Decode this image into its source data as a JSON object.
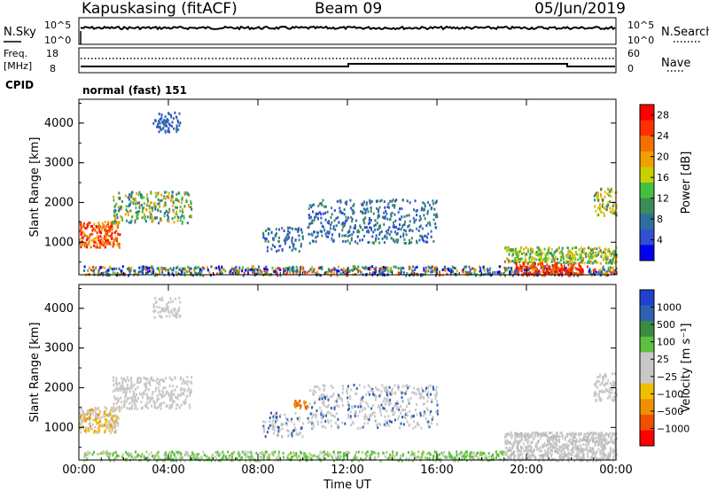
{
  "header": {
    "station": "Kapuskasing (fitACF)",
    "beam": "Beam 09",
    "date": "05/Jun/2019"
  },
  "summary_panels": {
    "nsky_label": "N.Sky",
    "nsky_top": "10^5",
    "nsky_bottom": "10^0",
    "nsearch_label": "N.Search",
    "freq_label_line1": "Freq.",
    "freq_label_line2": "[MHz]",
    "freq_top": "18",
    "freq_bottom": "8",
    "nave_top": "60",
    "nave_bottom": "0",
    "nave_label": "Nave",
    "cpid_label": "CPID",
    "cpid_text": "normal (fast) 151"
  },
  "colors": {
    "power_scale": [
      "#0000f0",
      "#3050d0",
      "#2f6fa0",
      "#3c8c5a",
      "#44c040",
      "#c8d000",
      "#f0a000",
      "#f07000",
      "#ff3000",
      "#ff0000"
    ],
    "velocity_scale": [
      "#2040d0",
      "#3060b0",
      "#3a8a40",
      "#5cc040",
      "#c8c8c8",
      "#c8c8c8",
      "#f0c000",
      "#f09000",
      "#f05000",
      "#ff0000"
    ]
  },
  "chart_data": [
    {
      "type": "heatmap",
      "panel": "power",
      "ylabel": "Slant Range [km]",
      "xlabel": "",
      "x_ticks": [
        "00:00",
        "04:00",
        "08:00",
        "12:00",
        "16:00",
        "20:00",
        "00:00"
      ],
      "y_ticks": [
        "1000",
        "2000",
        "3000",
        "4000"
      ],
      "ylim": [
        180,
        4600
      ],
      "colorbar_label": "Power [dB]",
      "colorbar_ticks": [
        "4",
        "8",
        "12",
        "16",
        "20",
        "24",
        "28"
      ],
      "colorbar_range": [
        0,
        30
      ]
    },
    {
      "type": "heatmap",
      "panel": "velocity",
      "ylabel": "Slant Range [km]",
      "xlabel": "Time UT",
      "x_ticks": [
        "00:00",
        "04:00",
        "08:00",
        "12:00",
        "16:00",
        "20:00",
        "00:00"
      ],
      "y_ticks": [
        "1000",
        "2000",
        "3000",
        "4000"
      ],
      "ylim": [
        180,
        4600
      ],
      "colorbar_label": "Velocity [m s⁻¹]",
      "colorbar_ticks": [
        "1000",
        "500",
        "100",
        "25",
        "−25",
        "−100",
        "−500",
        "−1000"
      ]
    }
  ]
}
